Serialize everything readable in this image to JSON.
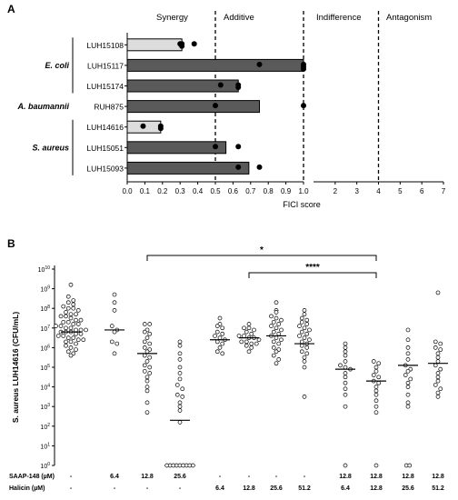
{
  "chart_data": [
    {
      "type": "bar",
      "panel_label": "A",
      "orientation": "horizontal",
      "xlabel": "FICI score",
      "region_labels": [
        "Synergy",
        "Additive",
        "Indifference",
        "Antagonism"
      ],
      "threshold_lines": [
        0.5,
        1.0,
        4
      ],
      "x_ticks_left": [
        "0.0",
        "0.1",
        "0.2",
        "0.3",
        "0.4",
        "0.5",
        "0.6",
        "0.7",
        "0.8",
        "0.9",
        "1.0"
      ],
      "x_ticks_right": [
        "1",
        "2",
        "3",
        "4",
        "5",
        "6",
        "7"
      ],
      "xlim_left": [
        0,
        1.0
      ],
      "xlim_right": [
        1,
        7
      ],
      "groups": [
        {
          "label": "E. coli",
          "rows": [
            0,
            1,
            2
          ]
        },
        {
          "label": "A. baumannii",
          "rows": [
            3
          ]
        },
        {
          "label": "S. aureus",
          "rows": [
            4,
            5,
            6
          ]
        }
      ],
      "categories": [
        "LUH15108",
        "LUH15117",
        "LUH15174",
        "RUH875",
        "LUH14616",
        "LUH15051",
        "LUH15093"
      ],
      "values": [
        0.31,
        1.0,
        0.63,
        0.75,
        0.19,
        0.56,
        0.69
      ],
      "bar_colors": [
        "#dddddd",
        "#5a5a5a",
        "#5a5a5a",
        "#5a5a5a",
        "#dddddd",
        "#5a5a5a",
        "#5a5a5a"
      ],
      "replicates": [
        [
          0.3,
          0.31,
          0.31,
          0.38
        ],
        [
          0.75,
          1.0,
          1.0,
          1.0
        ],
        [
          0.53,
          0.63,
          0.63
        ],
        [
          0.5,
          1.0
        ],
        [
          0.09,
          0.19,
          0.19
        ],
        [
          0.5,
          0.63
        ],
        [
          0.63,
          0.75
        ]
      ]
    },
    {
      "type": "scatter",
      "panel_label": "B",
      "ylabel": "S. aureus LUH14616 (CFU/mL)",
      "yscale": "log",
      "ylim_exp": [
        0,
        10
      ],
      "y_ticks": [
        {
          "base": "10",
          "exp": "10"
        },
        {
          "base": "10",
          "exp": "9"
        },
        {
          "base": "10",
          "exp": "8"
        },
        {
          "base": "10",
          "exp": "7"
        },
        {
          "base": "10",
          "exp": "6"
        },
        {
          "base": "10",
          "exp": "5"
        },
        {
          "base": "10",
          "exp": "4"
        },
        {
          "base": "10",
          "exp": "3"
        },
        {
          "base": "10",
          "exp": "2"
        },
        {
          "base": "10",
          "exp": "1"
        },
        {
          "base": "10",
          "exp": "0"
        }
      ],
      "row_labels": [
        "SAAP-148 (µM)",
        "Halicin (µM)"
      ],
      "groups": [
        {
          "saap": "-",
          "halicin": "-",
          "median_log": 6.8,
          "points_log": [
            9.2,
            8.6,
            8.4,
            8.3,
            8.2,
            8.1,
            8.0,
            8.0,
            7.9,
            7.8,
            7.7,
            7.7,
            7.6,
            7.6,
            7.5,
            7.4,
            7.4,
            7.3,
            7.3,
            7.2,
            7.2,
            7.1,
            7.1,
            7.0,
            7.0,
            6.9,
            6.9,
            6.9,
            6.8,
            6.8,
            6.8,
            6.7,
            6.7,
            6.6,
            6.6,
            6.5,
            6.5,
            6.4,
            6.4,
            6.3,
            6.3,
            6.2,
            6.1,
            6.0,
            5.9,
            5.8,
            5.7,
            5.6
          ]
        },
        {
          "saap": "6.4",
          "halicin": "-",
          "median_log": 6.9,
          "points_log": [
            8.7,
            8.3,
            7.9,
            7.1,
            6.9,
            6.8,
            6.3,
            6.2,
            5.7
          ]
        },
        {
          "saap": "12.8",
          "halicin": "-",
          "median_log": 5.7,
          "points_log": [
            7.2,
            7.2,
            6.9,
            6.8,
            6.7,
            6.5,
            6.3,
            6.2,
            6.0,
            5.9,
            5.8,
            5.6,
            5.5,
            5.3,
            5.1,
            5.0,
            4.8,
            4.7,
            4.5,
            4.3,
            4.0,
            3.8,
            3.2,
            2.7
          ]
        },
        {
          "saap": "25.6",
          "halicin": "-",
          "median_log": 2.3,
          "points_log": [
            6.3,
            6.1,
            5.7,
            5.4,
            5.0,
            4.7,
            4.4,
            4.1,
            3.9,
            3.6,
            3.5,
            3.2,
            3.0,
            2.8,
            2.2,
            0,
            0,
            0,
            0,
            0,
            0,
            0,
            0,
            0
          ]
        },
        {
          "saap": "-",
          "halicin": "6.4",
          "median_log": 6.4,
          "points_log": [
            7.5,
            7.2,
            7.1,
            7.0,
            6.8,
            6.7,
            6.6,
            6.5,
            6.4,
            6.3,
            6.2,
            6.0,
            5.8,
            5.7
          ]
        },
        {
          "saap": "-",
          "halicin": "12.8",
          "median_log": 6.5,
          "points_log": [
            7.2,
            7.0,
            7.0,
            6.9,
            6.8,
            6.7,
            6.6,
            6.6,
            6.5,
            6.5,
            6.4,
            6.3,
            6.3,
            6.2,
            6.2,
            6.1,
            6.0,
            5.8
          ]
        },
        {
          "saap": "-",
          "halicin": "25.6",
          "median_log": 6.6,
          "points_log": [
            8.3,
            7.9,
            7.8,
            7.6,
            7.5,
            7.4,
            7.3,
            7.2,
            7.1,
            7.0,
            6.9,
            6.8,
            6.7,
            6.6,
            6.5,
            6.4,
            6.3,
            6.2,
            6.0,
            5.9,
            5.8,
            5.6,
            5.4,
            5.2
          ]
        },
        {
          "saap": "-",
          "halicin": "51.2",
          "median_log": 6.2,
          "points_log": [
            7.9,
            7.7,
            7.5,
            7.4,
            7.3,
            7.2,
            7.1,
            7.0,
            6.9,
            6.8,
            6.7,
            6.6,
            6.5,
            6.4,
            6.3,
            6.2,
            6.1,
            6.0,
            5.8,
            5.7,
            5.5,
            5.3,
            5.0,
            3.5
          ]
        },
        {
          "saap": "12.8",
          "halicin": "6.4",
          "median_log": 4.9,
          "points_log": [
            6.2,
            6.0,
            5.8,
            5.6,
            5.3,
            5.1,
            5.0,
            4.9,
            4.7,
            4.5,
            4.2,
            3.9,
            3.6,
            3.0,
            0
          ]
        },
        {
          "saap": "12.8",
          "halicin": "12.8",
          "median_log": 4.3,
          "points_log": [
            5.3,
            5.2,
            5.0,
            4.8,
            4.6,
            4.5,
            4.3,
            4.2,
            4.0,
            3.8,
            3.6,
            3.3,
            3.0,
            2.7,
            0
          ]
        },
        {
          "saap": "12.8",
          "halicin": "25.6",
          "median_log": 5.1,
          "points_log": [
            6.9,
            6.4,
            6.0,
            5.7,
            5.4,
            5.1,
            4.9,
            4.8,
            4.6,
            4.4,
            4.2,
            4.0,
            3.6,
            3.2,
            3.0,
            0,
            0
          ]
        },
        {
          "saap": "12.8",
          "halicin": "51.2",
          "median_log": 5.2,
          "points_log": [
            8.8,
            6.3,
            6.2,
            6.0,
            5.9,
            5.7,
            5.5,
            5.3,
            5.1,
            4.9,
            4.7,
            4.5,
            4.3,
            4.1,
            3.9,
            3.7,
            3.5
          ]
        }
      ],
      "significance": [
        {
          "from_group": 2,
          "to_group": 9,
          "label": "*"
        },
        {
          "from_group": 5,
          "to_group": 9,
          "label": "****"
        }
      ]
    }
  ]
}
